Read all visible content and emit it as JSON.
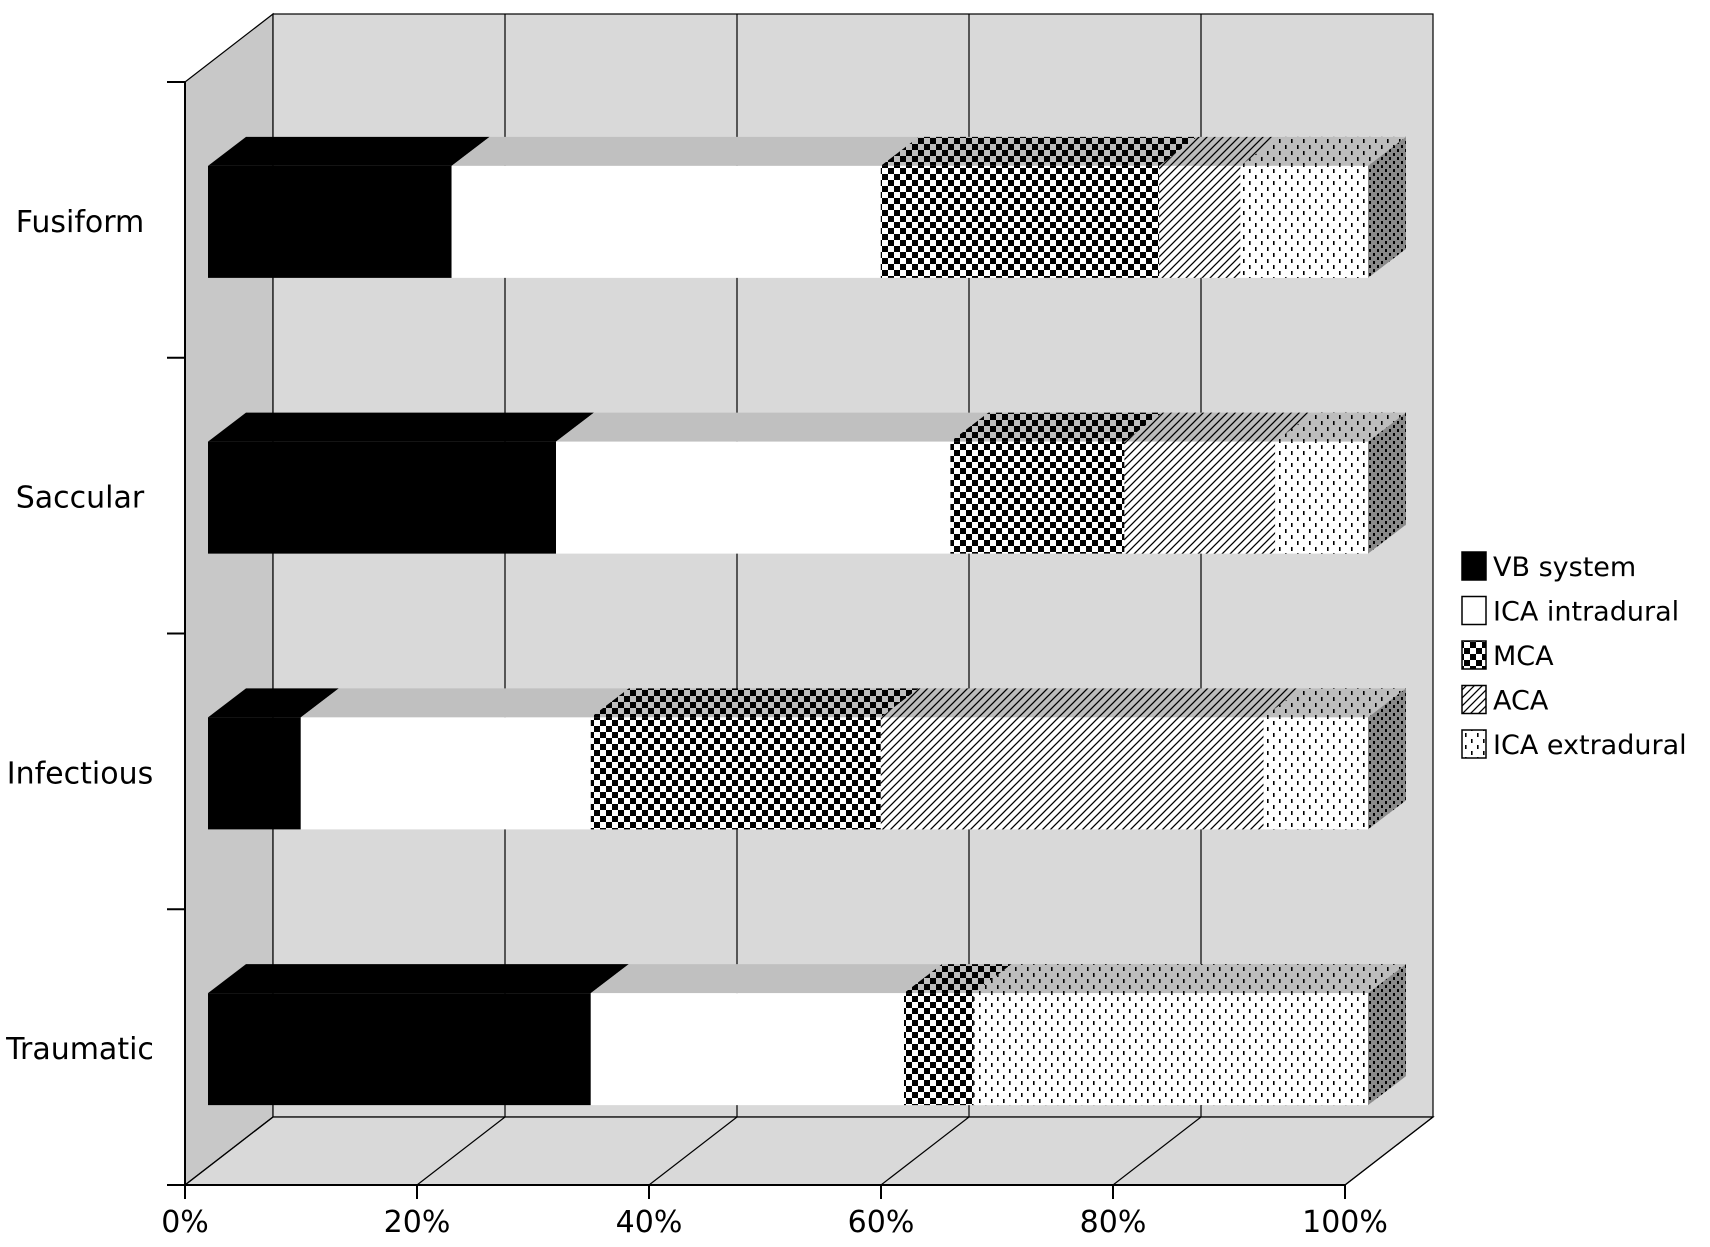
{
  "chart_data": {
    "type": "bar",
    "orientation": "horizontal",
    "stacked": "percent",
    "three_d": true,
    "title": "",
    "xlabel": "",
    "ylabel": "",
    "xlim": [
      0,
      100
    ],
    "x_ticks": [
      "0%",
      "20%",
      "40%",
      "60%",
      "80%",
      "100%"
    ],
    "grid": true,
    "legend_position": "right",
    "categories": [
      "Fusiform",
      "Saccular",
      "Infectious",
      "Traumatic"
    ],
    "series": [
      {
        "name": "VB system",
        "pattern": "solid-black",
        "values": [
          21,
          30,
          8,
          33
        ]
      },
      {
        "name": "ICA intradural",
        "pattern": "white",
        "values": [
          37,
          34,
          25,
          27
        ]
      },
      {
        "name": "MCA",
        "pattern": "checkerboard",
        "values": [
          24,
          15,
          25,
          6
        ]
      },
      {
        "name": "ACA",
        "pattern": "diagonal-hatch",
        "values": [
          7,
          13,
          33,
          0
        ]
      },
      {
        "name": "ICA extradural",
        "pattern": "dotted",
        "values": [
          11,
          8,
          9,
          34
        ]
      }
    ],
    "colors": {
      "wall": "#d9d9d9",
      "wall_side": "#c8c8c8",
      "axis": "#000000",
      "bar_shadow_top": "#c0c0c0"
    }
  }
}
